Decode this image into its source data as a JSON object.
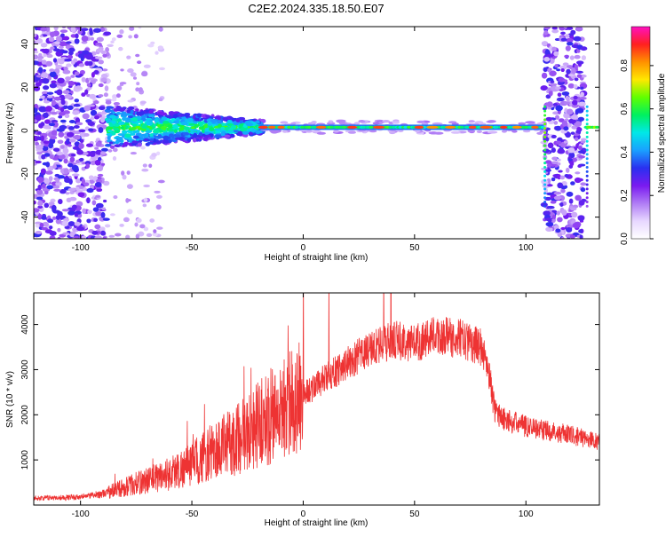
{
  "title": "C2E2.2024.335.18.50.E07",
  "chart_data": [
    {
      "type": "heatmap",
      "name": "spectrogram",
      "xlabel": "Height of straight line (km)",
      "ylabel": "Frequency (Hz)",
      "xlim": [
        -121,
        133
      ],
      "ylim": [
        -50,
        48
      ],
      "xticks": [
        -100,
        -50,
        0,
        50,
        100
      ],
      "yticks": [
        -40,
        -20,
        0,
        20,
        40
      ],
      "colorbar": {
        "label": "Normalized spectral amplitude",
        "range": [
          0,
          0.98
        ],
        "ticks": [
          "0.0",
          "0.2",
          "0.4",
          "0.6",
          "0.8"
        ],
        "tick_values": [
          0,
          0.2,
          0.4,
          0.6,
          0.8
        ],
        "colormap": [
          "#ffffff",
          "#e7d7ff",
          "#b07cf5",
          "#7a1af0",
          "#2a30f0",
          "#1aa0ff",
          "#00e8e8",
          "#00f060",
          "#60ff00",
          "#ffe800",
          "#ff9000",
          "#ff2020",
          "#ff10c0"
        ]
      },
      "features": {
        "noise_band_left": [
          -121,
          -88
        ],
        "central_band_hz": 1.5,
        "noise_band_right": [
          108,
          126
        ]
      }
    },
    {
      "type": "line",
      "name": "snr",
      "xlabel": "Height of straight line (km)",
      "ylabel": "SNR (10 * v/v)",
      "xlim": [
        -121,
        133
      ],
      "ylim": [
        0,
        4700
      ],
      "xticks": [
        -100,
        -50,
        0,
        50,
        100
      ],
      "yticks": [
        1000,
        2000,
        3000,
        4000
      ],
      "color": "#ee3333",
      "x": [
        -121,
        -100,
        -90,
        -80,
        -70,
        -60,
        -50,
        -40,
        -30,
        -20,
        -10,
        0,
        10,
        20,
        30,
        40,
        50,
        60,
        70,
        80,
        83,
        86,
        90,
        100,
        110,
        120,
        133
      ],
      "y": [
        150,
        180,
        250,
        400,
        550,
        700,
        900,
        1200,
        1450,
        1800,
        2100,
        2450,
        2800,
        3150,
        3450,
        3650,
        3600,
        3750,
        3700,
        3500,
        3050,
        2100,
        1900,
        1750,
        1650,
        1550,
        1400
      ]
    }
  ]
}
